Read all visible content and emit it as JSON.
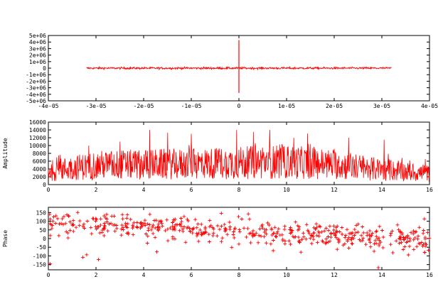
{
  "colors": {
    "trace": "#ff0000",
    "axis": "#000000",
    "background": "#ffffff"
  },
  "chart_data": [
    {
      "type": "line",
      "title": "",
      "xlabel": "",
      "ylabel": "",
      "xlim": [
        -4e-05,
        4e-05
      ],
      "ylim": [
        -5000000,
        5000000
      ],
      "x_ticks": [
        {
          "v": -4e-05,
          "label": "-4e-05"
        },
        {
          "v": -3e-05,
          "label": "-3e-05"
        },
        {
          "v": -2e-05,
          "label": "-2e-05"
        },
        {
          "v": -1e-05,
          "label": "-1e-05"
        },
        {
          "v": 0,
          "label": "0"
        },
        {
          "v": 1e-05,
          "label": "1e-05"
        },
        {
          "v": 2e-05,
          "label": "2e-05"
        },
        {
          "v": 3e-05,
          "label": "3e-05"
        },
        {
          "v": 4e-05,
          "label": "4e-05"
        }
      ],
      "y_ticks": [
        {
          "v": 5000000,
          "label": "5e+06"
        },
        {
          "v": 4000000,
          "label": "4e+06"
        },
        {
          "v": 3000000,
          "label": "3e+06"
        },
        {
          "v": 2000000,
          "label": "2e+06"
        },
        {
          "v": 1000000,
          "label": "1e+06"
        },
        {
          "v": 0,
          "label": "0"
        },
        {
          "v": -1000000,
          "label": "-1e+06"
        },
        {
          "v": -2000000,
          "label": "-2e+06"
        },
        {
          "v": -3000000,
          "label": "-3e+06"
        },
        {
          "v": -4000000,
          "label": "-4e+06"
        },
        {
          "v": -5000000,
          "label": "-5e+06"
        }
      ],
      "series": [
        {
          "x_range": [
            -3.2e-05,
            3.2e-05
          ],
          "noise_amplitude": 150000,
          "spike": {
            "x": 0,
            "max": 4300000,
            "min": -3800000
          }
        }
      ]
    },
    {
      "type": "line",
      "title": "",
      "xlabel": "",
      "ylabel": "Amplitude",
      "xlim": [
        0,
        16
      ],
      "ylim": [
        0,
        16000
      ],
      "x_ticks": [
        {
          "v": 0,
          "label": "0"
        },
        {
          "v": 2,
          "label": "2"
        },
        {
          "v": 4,
          "label": "4"
        },
        {
          "v": 6,
          "label": "6"
        },
        {
          "v": 8,
          "label": "8"
        },
        {
          "v": 10,
          "label": "10"
        },
        {
          "v": 12,
          "label": "12"
        },
        {
          "v": 14,
          "label": "14"
        },
        {
          "v": 16,
          "label": "16"
        }
      ],
      "y_ticks": [
        {
          "v": 16000,
          "label": "16000"
        },
        {
          "v": 14000,
          "label": "14000"
        },
        {
          "v": 12000,
          "label": "12000"
        },
        {
          "v": 10000,
          "label": "10000"
        },
        {
          "v": 8000,
          "label": "8000"
        },
        {
          "v": 6000,
          "label": "6000"
        },
        {
          "v": 4000,
          "label": "4000"
        },
        {
          "v": 2000,
          "label": "2000"
        },
        {
          "v": 0,
          "label": "0"
        }
      ],
      "series": [
        {
          "envelope": [
            [
              0,
              3500
            ],
            [
              2,
              5000
            ],
            [
              4,
              5200
            ],
            [
              6,
              5300
            ],
            [
              8,
              5600
            ],
            [
              10,
              5800
            ],
            [
              12,
              5200
            ],
            [
              14,
              3800
            ],
            [
              16,
              2800
            ]
          ],
          "peaks": [
            [
              4.25,
              14000
            ],
            [
              7.9,
              14000
            ],
            [
              9.3,
              14000
            ],
            [
              8.6,
              13500
            ],
            [
              6.0,
              13000
            ],
            [
              10.3,
              12000
            ],
            [
              14.1,
              11500
            ],
            [
              1.7,
              10000
            ],
            [
              3.0,
              11000
            ],
            [
              12.6,
              12000
            ]
          ],
          "samples": 1000
        }
      ]
    },
    {
      "type": "scatter",
      "title": "",
      "xlabel": "",
      "ylabel": "Phase",
      "xlim": [
        0,
        16
      ],
      "ylim": [
        -180,
        180
      ],
      "x_ticks": [
        {
          "v": 0,
          "label": "0"
        },
        {
          "v": 2,
          "label": "2"
        },
        {
          "v": 4,
          "label": "4"
        },
        {
          "v": 6,
          "label": "6"
        },
        {
          "v": 8,
          "label": "8"
        },
        {
          "v": 10,
          "label": "10"
        },
        {
          "v": 12,
          "label": "12"
        },
        {
          "v": 14,
          "label": "14"
        },
        {
          "v": 16,
          "label": "16"
        }
      ],
      "y_ticks": [
        {
          "v": 150,
          "label": "150"
        },
        {
          "v": 100,
          "label": "100"
        },
        {
          "v": 50,
          "label": "50"
        },
        {
          "v": 0,
          "label": "0"
        },
        {
          "v": -50,
          "label": "-50"
        },
        {
          "v": -100,
          "label": "-100"
        },
        {
          "v": -150,
          "label": "-150"
        }
      ],
      "series": [
        {
          "marker": "+",
          "trend": [
            [
              0,
              95
            ],
            [
              16,
              -5
            ]
          ],
          "spread": 45,
          "samples": 520
        }
      ]
    }
  ]
}
